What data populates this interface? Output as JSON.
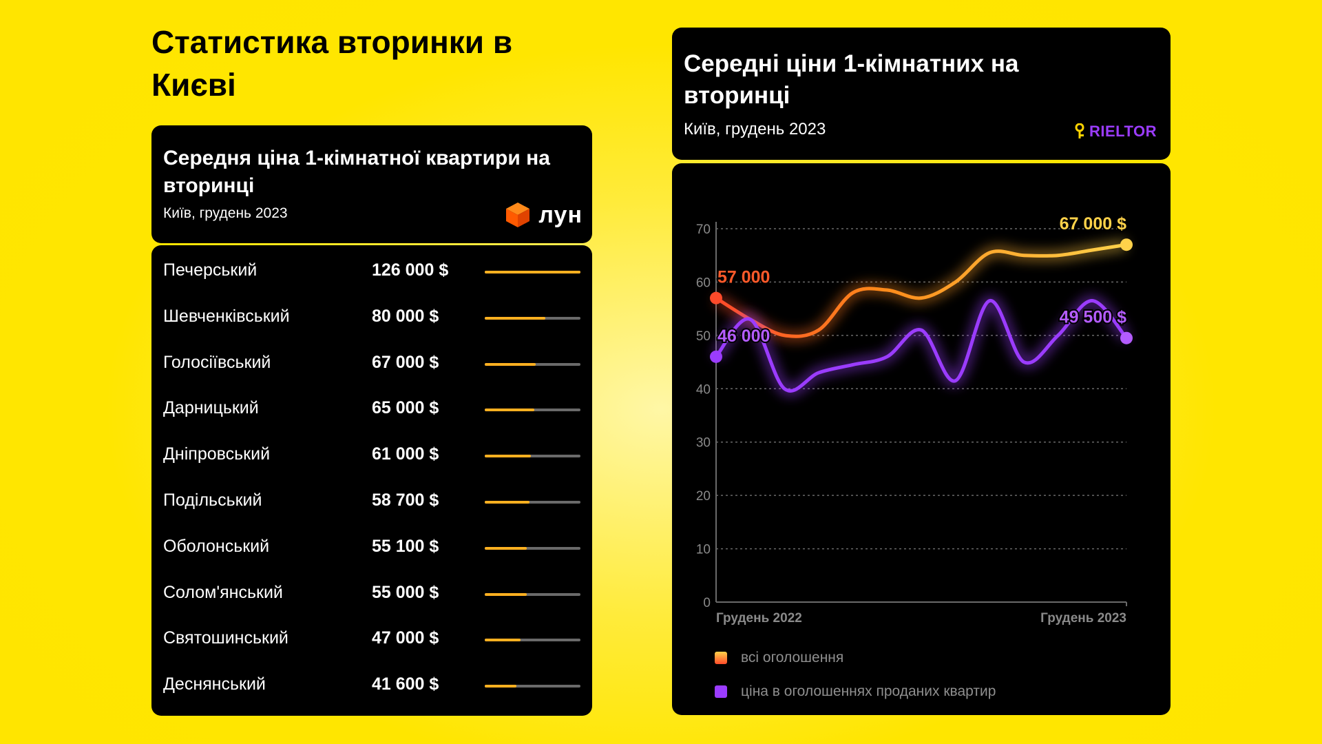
{
  "page_title": "Статистика вторинки в Києві",
  "left_card": {
    "title": "Середня ціна 1-кімнатної квартири на вторинці",
    "subtitle": "Київ, грудень 2023",
    "logo_text": "лун",
    "rows": [
      {
        "district": "Печерський",
        "price": "126 000 $",
        "value": 126000
      },
      {
        "district": "Шевченківський",
        "price": "80 000 $",
        "value": 80000
      },
      {
        "district": "Голосіївський",
        "price": "67 000 $",
        "value": 67000
      },
      {
        "district": "Дарницький",
        "price": "65 000 $",
        "value": 65000
      },
      {
        "district": "Дніпровський",
        "price": "61 000 $",
        "value": 61000
      },
      {
        "district": "Подільський",
        "price": "58 700 $",
        "value": 58700
      },
      {
        "district": "Оболонський",
        "price": "55 100 $",
        "value": 55100
      },
      {
        "district": "Солом'янський",
        "price": "55 000 $",
        "value": 55000
      },
      {
        "district": "Святошинський",
        "price": "47 000 $",
        "value": 47000
      },
      {
        "district": "Деснянський",
        "price": "41 600 $",
        "value": 41600
      }
    ],
    "bar_max": 126000
  },
  "right_card": {
    "title": "Середні ціни 1-кімнатних на вторинці",
    "subtitle": "Київ, грудень 2023",
    "logo_text": "RIELTOR"
  },
  "chart_data": [
    {
      "type": "table",
      "title": "Середня ціна 1-кімнатної квартири на вторинці",
      "subtitle": "Київ, грудень 2023",
      "categories": [
        "Печерський",
        "Шевченківський",
        "Голосіївський",
        "Дарницький",
        "Дніпровський",
        "Подільський",
        "Оболонський",
        "Солом'янський",
        "Святошинський",
        "Деснянський"
      ],
      "values": [
        126000,
        80000,
        67000,
        65000,
        61000,
        58700,
        55100,
        55000,
        47000,
        41600
      ]
    },
    {
      "type": "line",
      "title": "Середні ціни 1-кімнатних на вторинці",
      "subtitle": "Київ, грудень 2023",
      "x_labels": [
        "Грудень 2022",
        "Грудень 2023"
      ],
      "y_ticks": [
        0,
        10,
        20,
        30,
        40,
        50,
        60,
        70
      ],
      "ylim": [
        0,
        70
      ],
      "grid": true,
      "legend_position": "bottom-left",
      "series": [
        {
          "name": "всі оголошення",
          "color": "#ffb020",
          "values": [
            57,
            53,
            50,
            51,
            58,
            58.5,
            57,
            60,
            65.5,
            65,
            65,
            66,
            67
          ],
          "end_labels": {
            "start": "57 000",
            "end": "67 000 $"
          }
        },
        {
          "name": "ціна в оголошеннях проданих квартир",
          "color": "#9b3cff",
          "values": [
            46,
            53,
            40,
            43,
            44.5,
            46,
            51,
            41.5,
            56.5,
            45,
            50,
            56.5,
            49.5
          ],
          "end_labels": {
            "start": "46 000",
            "end": "49 500 $"
          }
        }
      ]
    }
  ]
}
